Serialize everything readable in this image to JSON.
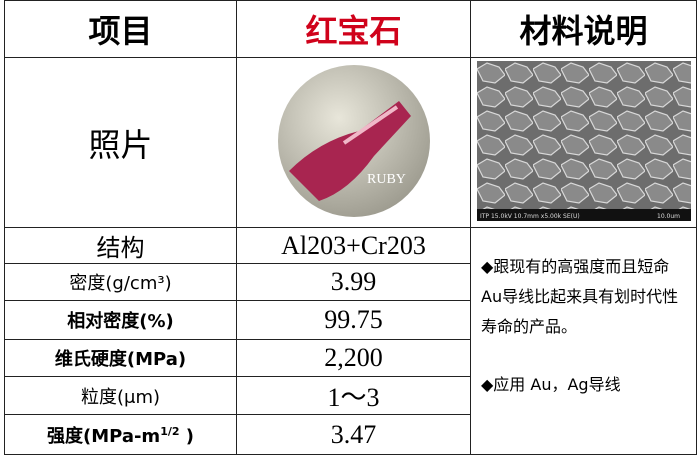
{
  "header": {
    "item": "项目",
    "material": "红宝石",
    "note": "材料说明"
  },
  "photo_row": {
    "label": "照片",
    "ruby_caption": "RUBY",
    "sem_caption": "ITP 15.0kV 10.7mm x5.00k SE(U)",
    "sem_scale": "10.0um"
  },
  "rows": [
    {
      "label": "结构",
      "value": "Al203+Cr203"
    },
    {
      "label": "密度(g/cm³)",
      "value": "3.99"
    },
    {
      "label": "相对密度(%)",
      "value": "99.75"
    },
    {
      "label": "维氏硬度(MPa)",
      "value": "2,200"
    },
    {
      "label": "粒度(μm)",
      "value": "1～3"
    },
    {
      "label": "强度(MPa-m",
      "label_sup": "1/2",
      "label_end": " )",
      "value": "3.47"
    }
  ],
  "description": {
    "line1": "◆跟现有的高强度而且短命Au导线比起来具有划时代性寿命的产品。",
    "line2": "◆应用 Au，Ag导线"
  }
}
